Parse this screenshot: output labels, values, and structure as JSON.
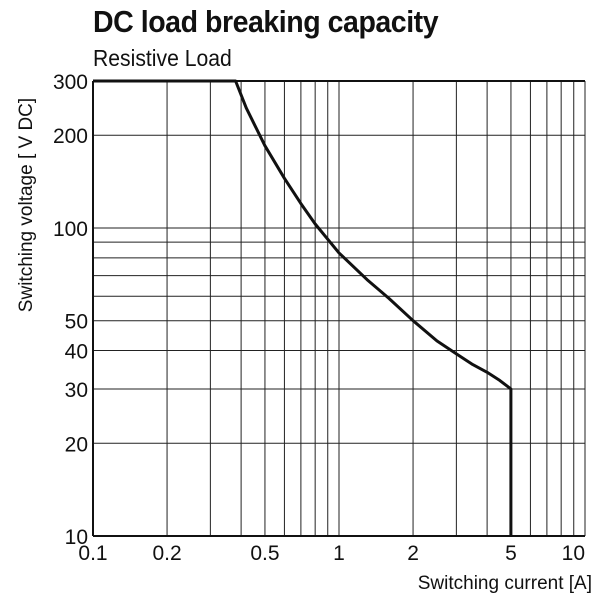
{
  "chart_data": {
    "type": "line",
    "title": "DC load breaking capacity",
    "subtitle": "Resistive Load",
    "xlabel": "Switching current [A]",
    "ylabel": "Switching voltage [ V DC]",
    "x_scale": "log",
    "y_scale": "log",
    "xlim": [
      0.1,
      10
    ],
    "ylim": [
      10,
      300
    ],
    "grid": true,
    "x_ticks": [
      {
        "value": 0.1,
        "label": "0.1"
      },
      {
        "value": 0.2,
        "label": "0.2"
      },
      {
        "value": 0.5,
        "label": "0.5"
      },
      {
        "value": 1,
        "label": "1"
      },
      {
        "value": 2,
        "label": "2"
      },
      {
        "value": 5,
        "label": "5"
      },
      {
        "value": 10,
        "label": "10"
      }
    ],
    "y_ticks": [
      {
        "value": 10,
        "label": "10"
      },
      {
        "value": 20,
        "label": "20"
      },
      {
        "value": 30,
        "label": "30"
      },
      {
        "value": 40,
        "label": "40"
      },
      {
        "value": 50,
        "label": "50"
      },
      {
        "value": 100,
        "label": "100"
      },
      {
        "value": 200,
        "label": "200"
      },
      {
        "value": 300,
        "label": "300"
      }
    ],
    "x_grid": [
      0.1,
      0.2,
      0.3,
      0.4,
      0.5,
      0.6,
      0.7,
      0.8,
      0.9,
      1,
      2,
      3,
      4,
      5,
      6,
      7,
      8,
      9,
      10
    ],
    "y_grid": [
      10,
      20,
      30,
      40,
      50,
      60,
      70,
      80,
      90,
      100,
      200,
      300
    ],
    "series": [
      {
        "color": "#111111",
        "x": [
          0.1,
          0.38,
          0.42,
          0.5,
          0.6,
          0.7,
          0.8,
          1.0,
          1.3,
          1.6,
          2.0,
          2.5,
          3.0,
          3.5,
          4.0,
          4.5,
          5.0,
          5.0
        ],
        "y": [
          300,
          300,
          245,
          185,
          145,
          120,
          103,
          83,
          68,
          59,
          50,
          43,
          39,
          36,
          34,
          32,
          30,
          10
        ]
      }
    ]
  }
}
